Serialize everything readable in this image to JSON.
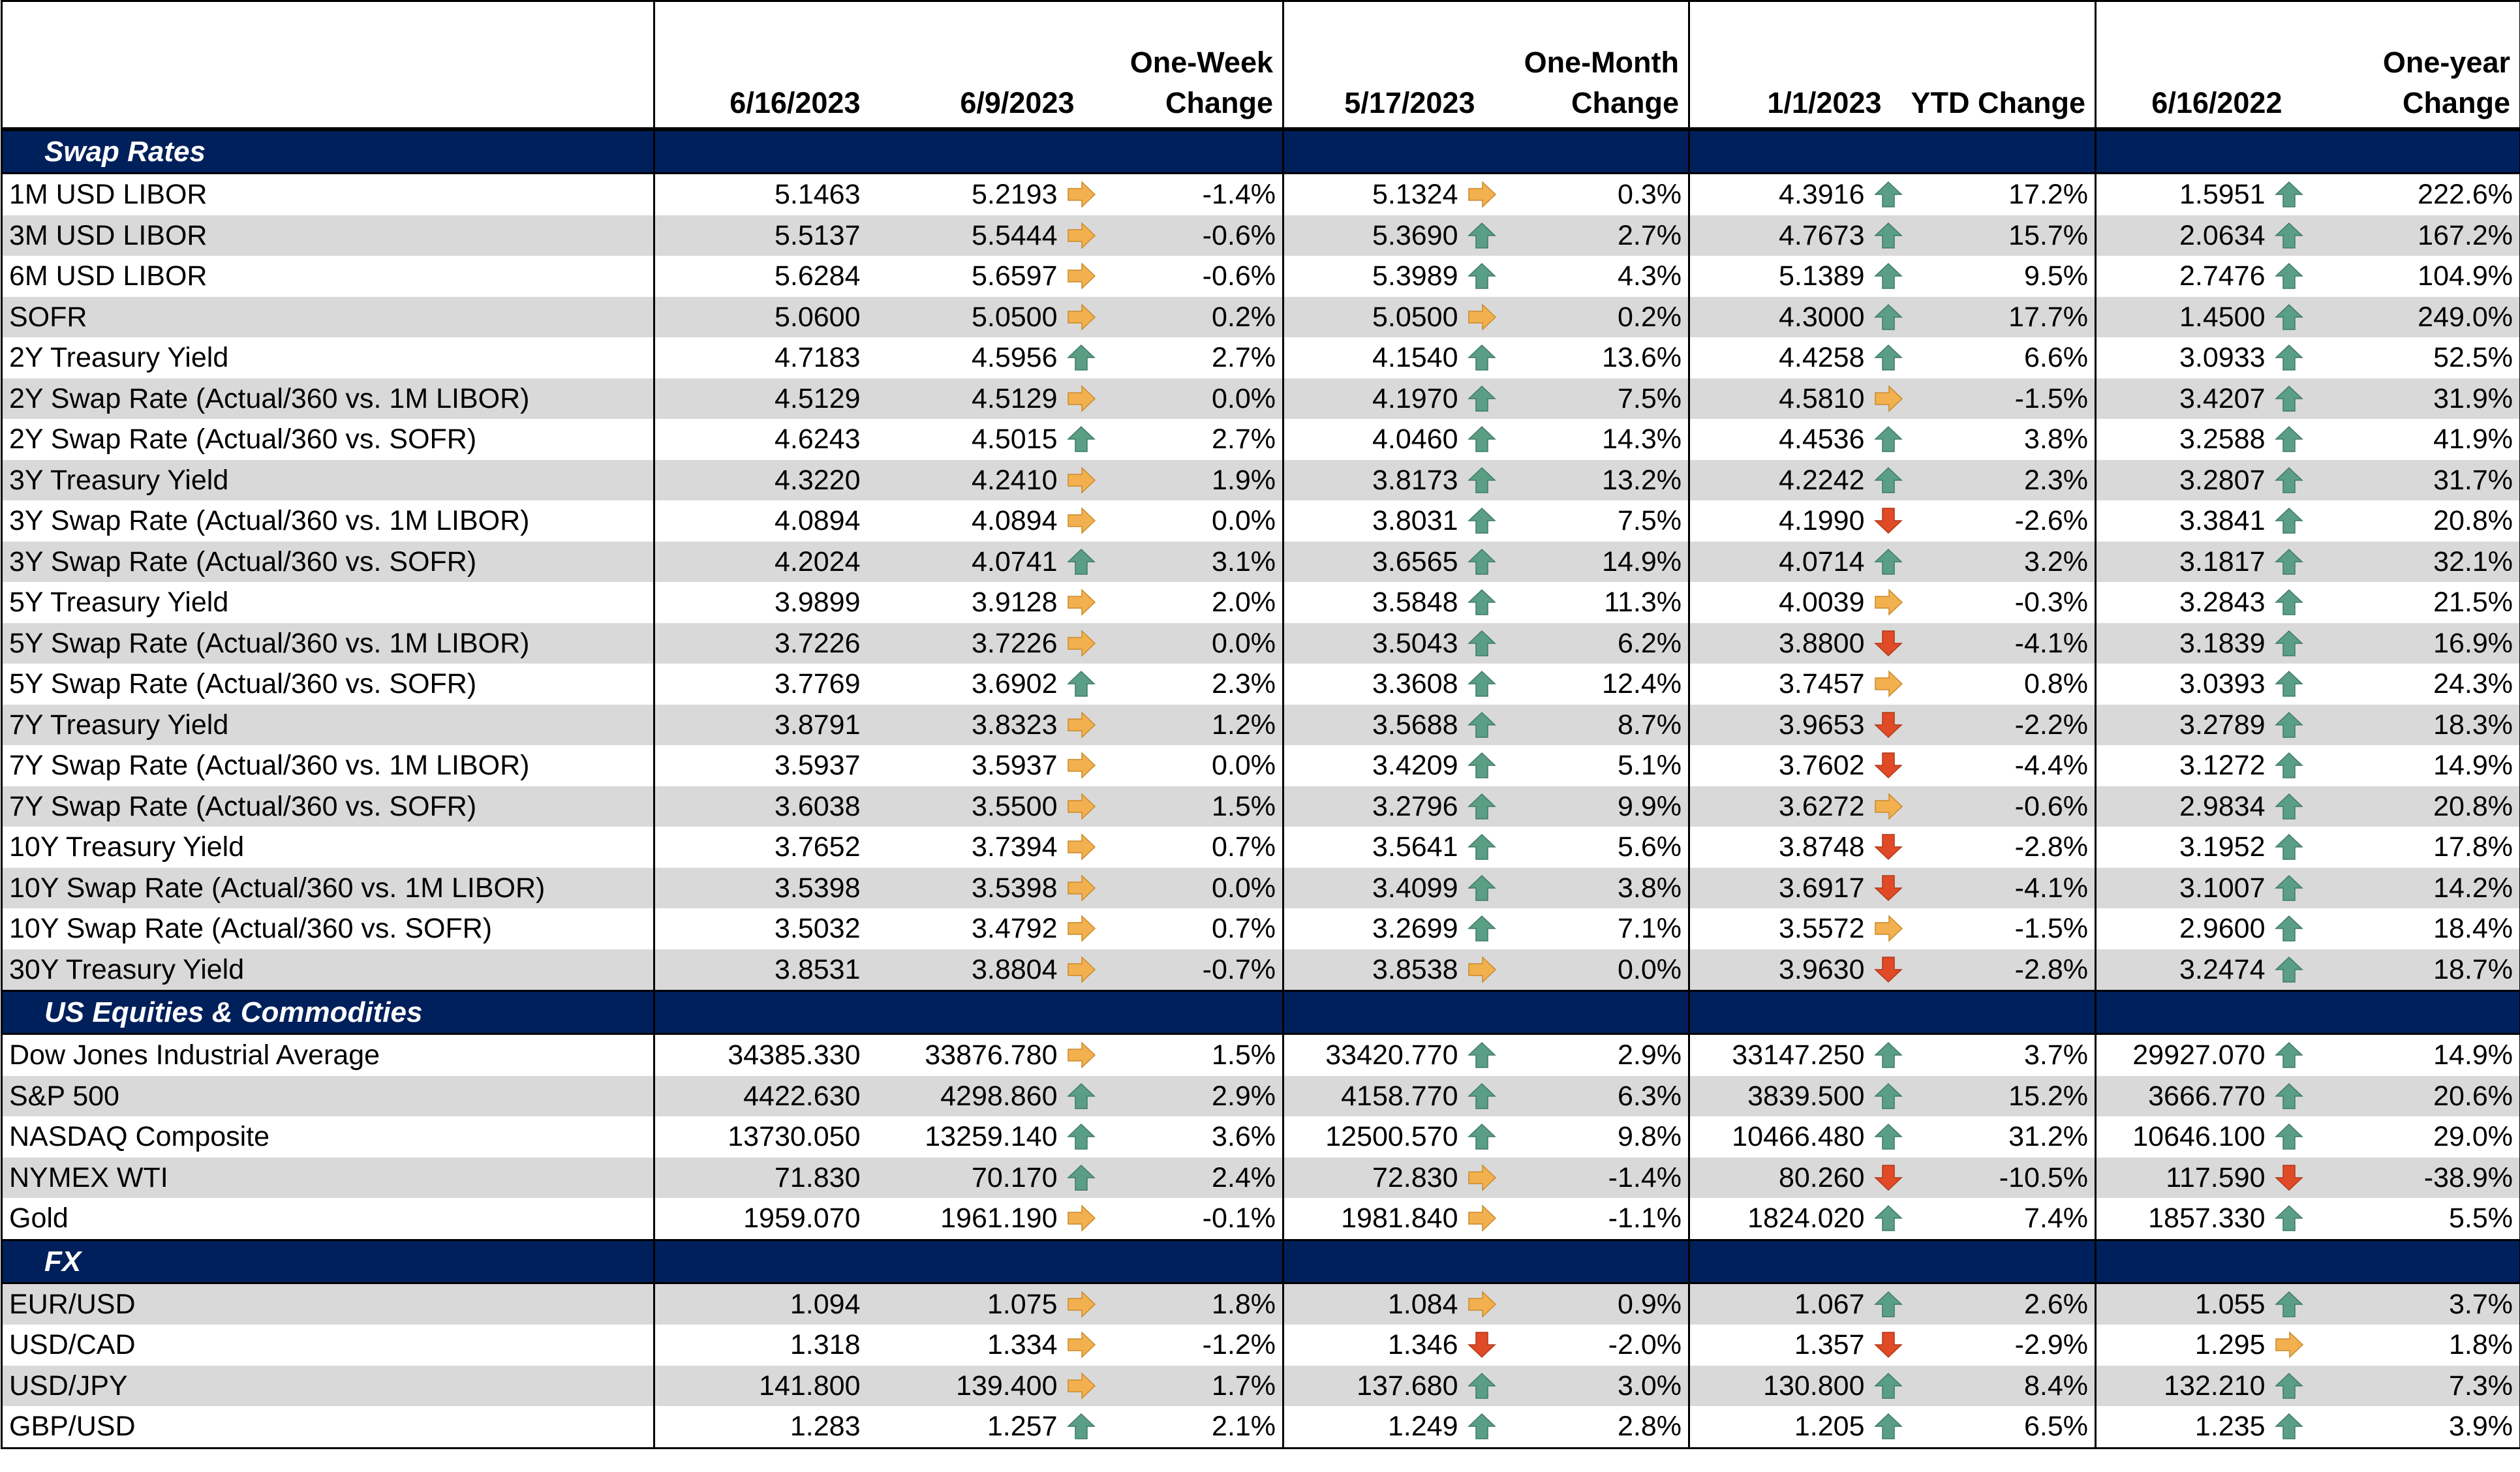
{
  "header": {
    "col1_date": "6/16/2023",
    "col2_date": "6/9/2023",
    "col2_change": "One-Week\nChange",
    "col3_date": "5/17/2023",
    "col3_change": "One-Month\nChange",
    "col4_date": "1/1/2023",
    "col4_change": "YTD Change",
    "col5_date": "6/16/2022",
    "col5_change": "One-year\nChange"
  },
  "colors": {
    "section_bg": "#00205b",
    "row_alt": "#d9d9d9",
    "up": "#5a9e86",
    "down": "#e04a26",
    "flat": "#f2b04e"
  },
  "sections": [
    {
      "title": "Swap Rates",
      "rows": [
        [
          "1M USD LIBOR",
          "5.1463",
          "5.2193",
          "flat",
          "-1.4%",
          "5.1324",
          "flat",
          "0.3%",
          "4.3916",
          "up",
          "17.2%",
          "1.5951",
          "up",
          "222.6%"
        ],
        [
          "3M USD LIBOR",
          "5.5137",
          "5.5444",
          "flat",
          "-0.6%",
          "5.3690",
          "up",
          "2.7%",
          "4.7673",
          "up",
          "15.7%",
          "2.0634",
          "up",
          "167.2%"
        ],
        [
          "6M USD LIBOR",
          "5.6284",
          "5.6597",
          "flat",
          "-0.6%",
          "5.3989",
          "up",
          "4.3%",
          "5.1389",
          "up",
          "9.5%",
          "2.7476",
          "up",
          "104.9%"
        ],
        [
          "SOFR",
          "5.0600",
          "5.0500",
          "flat",
          "0.2%",
          "5.0500",
          "flat",
          "0.2%",
          "4.3000",
          "up",
          "17.7%",
          "1.4500",
          "up",
          "249.0%"
        ],
        [
          "2Y Treasury Yield",
          "4.7183",
          "4.5956",
          "up",
          "2.7%",
          "4.1540",
          "up",
          "13.6%",
          "4.4258",
          "up",
          "6.6%",
          "3.0933",
          "up",
          "52.5%"
        ],
        [
          "2Y Swap Rate (Actual/360 vs. 1M LIBOR)",
          "4.5129",
          "4.5129",
          "flat",
          "0.0%",
          "4.1970",
          "up",
          "7.5%",
          "4.5810",
          "flat",
          "-1.5%",
          "3.4207",
          "up",
          "31.9%"
        ],
        [
          "2Y Swap Rate (Actual/360 vs. SOFR)",
          "4.6243",
          "4.5015",
          "up",
          "2.7%",
          "4.0460",
          "up",
          "14.3%",
          "4.4536",
          "up",
          "3.8%",
          "3.2588",
          "up",
          "41.9%"
        ],
        [
          "3Y Treasury Yield",
          "4.3220",
          "4.2410",
          "flat",
          "1.9%",
          "3.8173",
          "up",
          "13.2%",
          "4.2242",
          "up",
          "2.3%",
          "3.2807",
          "up",
          "31.7%"
        ],
        [
          "3Y Swap Rate (Actual/360 vs. 1M LIBOR)",
          "4.0894",
          "4.0894",
          "flat",
          "0.0%",
          "3.8031",
          "up",
          "7.5%",
          "4.1990",
          "down",
          "-2.6%",
          "3.3841",
          "up",
          "20.8%"
        ],
        [
          "3Y Swap Rate (Actual/360 vs. SOFR)",
          "4.2024",
          "4.0741",
          "up",
          "3.1%",
          "3.6565",
          "up",
          "14.9%",
          "4.0714",
          "up",
          "3.2%",
          "3.1817",
          "up",
          "32.1%"
        ],
        [
          "5Y Treasury Yield",
          "3.9899",
          "3.9128",
          "flat",
          "2.0%",
          "3.5848",
          "up",
          "11.3%",
          "4.0039",
          "flat",
          "-0.3%",
          "3.2843",
          "up",
          "21.5%"
        ],
        [
          "5Y Swap Rate (Actual/360 vs. 1M LIBOR)",
          "3.7226",
          "3.7226",
          "flat",
          "0.0%",
          "3.5043",
          "up",
          "6.2%",
          "3.8800",
          "down",
          "-4.1%",
          "3.1839",
          "up",
          "16.9%"
        ],
        [
          "5Y Swap Rate (Actual/360 vs. SOFR)",
          "3.7769",
          "3.6902",
          "up",
          "2.3%",
          "3.3608",
          "up",
          "12.4%",
          "3.7457",
          "flat",
          "0.8%",
          "3.0393",
          "up",
          "24.3%"
        ],
        [
          "7Y Treasury Yield",
          "3.8791",
          "3.8323",
          "flat",
          "1.2%",
          "3.5688",
          "up",
          "8.7%",
          "3.9653",
          "down",
          "-2.2%",
          "3.2789",
          "up",
          "18.3%"
        ],
        [
          "7Y Swap Rate (Actual/360 vs. 1M LIBOR)",
          "3.5937",
          "3.5937",
          "flat",
          "0.0%",
          "3.4209",
          "up",
          "5.1%",
          "3.7602",
          "down",
          "-4.4%",
          "3.1272",
          "up",
          "14.9%"
        ],
        [
          "7Y Swap Rate (Actual/360 vs. SOFR)",
          "3.6038",
          "3.5500",
          "flat",
          "1.5%",
          "3.2796",
          "up",
          "9.9%",
          "3.6272",
          "flat",
          "-0.6%",
          "2.9834",
          "up",
          "20.8%"
        ],
        [
          "10Y Treasury Yield",
          "3.7652",
          "3.7394",
          "flat",
          "0.7%",
          "3.5641",
          "up",
          "5.6%",
          "3.8748",
          "down",
          "-2.8%",
          "3.1952",
          "up",
          "17.8%"
        ],
        [
          "10Y Swap Rate (Actual/360 vs. 1M LIBOR)",
          "3.5398",
          "3.5398",
          "flat",
          "0.0%",
          "3.4099",
          "up",
          "3.8%",
          "3.6917",
          "down",
          "-4.1%",
          "3.1007",
          "up",
          "14.2%"
        ],
        [
          "10Y Swap Rate (Actual/360 vs. SOFR)",
          "3.5032",
          "3.4792",
          "flat",
          "0.7%",
          "3.2699",
          "up",
          "7.1%",
          "3.5572",
          "flat",
          "-1.5%",
          "2.9600",
          "up",
          "18.4%"
        ],
        [
          "30Y Treasury Yield",
          "3.8531",
          "3.8804",
          "flat",
          "-0.7%",
          "3.8538",
          "flat",
          "0.0%",
          "3.9630",
          "down",
          "-2.8%",
          "3.2474",
          "up",
          "18.7%"
        ]
      ]
    },
    {
      "title": "US Equities & Commodities",
      "rows": [
        [
          "Dow Jones Industrial Average",
          "34385.330",
          "33876.780",
          "flat",
          "1.5%",
          "33420.770",
          "up",
          "2.9%",
          "33147.250",
          "up",
          "3.7%",
          "29927.070",
          "up",
          "14.9%"
        ],
        [
          "S&P 500",
          "4422.630",
          "4298.860",
          "up",
          "2.9%",
          "4158.770",
          "up",
          "6.3%",
          "3839.500",
          "up",
          "15.2%",
          "3666.770",
          "up",
          "20.6%"
        ],
        [
          "NASDAQ Composite",
          "13730.050",
          "13259.140",
          "up",
          "3.6%",
          "12500.570",
          "up",
          "9.8%",
          "10466.480",
          "up",
          "31.2%",
          "10646.100",
          "up",
          "29.0%"
        ],
        [
          "NYMEX WTI",
          "71.830",
          "70.170",
          "up",
          "2.4%",
          "72.830",
          "flat",
          "-1.4%",
          "80.260",
          "down",
          "-10.5%",
          "117.590",
          "down",
          "-38.9%"
        ],
        [
          "Gold",
          "1959.070",
          "1961.190",
          "flat",
          "-0.1%",
          "1981.840",
          "flat",
          "-1.1%",
          "1824.020",
          "up",
          "7.4%",
          "1857.330",
          "up",
          "5.5%"
        ]
      ]
    },
    {
      "title": "FX",
      "rows": [
        [
          "EUR/USD",
          "1.094",
          "1.075",
          "flat",
          "1.8%",
          "1.084",
          "flat",
          "0.9%",
          "1.067",
          "up",
          "2.6%",
          "1.055",
          "up",
          "3.7%"
        ],
        [
          "USD/CAD",
          "1.318",
          "1.334",
          "flat",
          "-1.2%",
          "1.346",
          "down",
          "-2.0%",
          "1.357",
          "down",
          "-2.9%",
          "1.295",
          "flat",
          "1.8%"
        ],
        [
          "USD/JPY",
          "141.800",
          "139.400",
          "flat",
          "1.7%",
          "137.680",
          "up",
          "3.0%",
          "130.800",
          "up",
          "8.4%",
          "132.210",
          "up",
          "7.3%"
        ],
        [
          "GBP/USD",
          "1.283",
          "1.257",
          "up",
          "2.1%",
          "1.249",
          "up",
          "2.8%",
          "1.205",
          "up",
          "6.5%",
          "1.235",
          "up",
          "3.9%"
        ]
      ]
    }
  ]
}
